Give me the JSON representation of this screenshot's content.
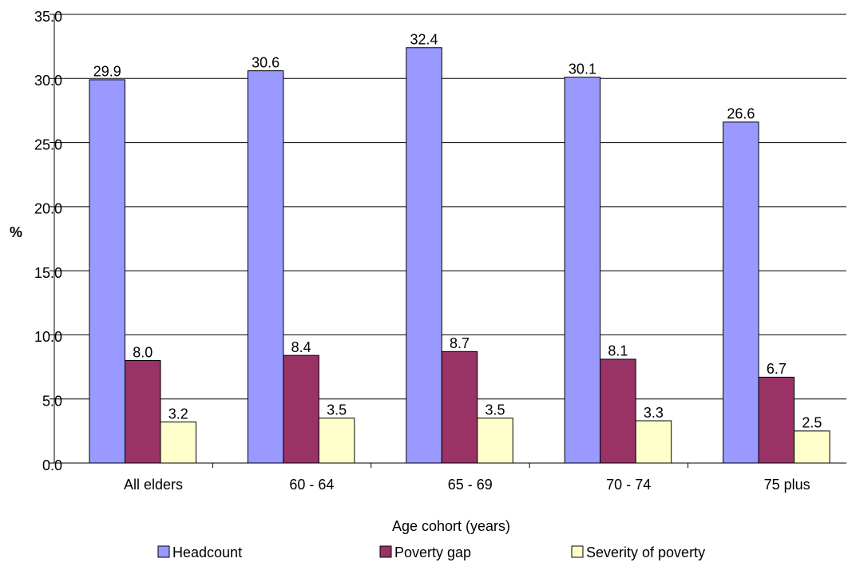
{
  "chart_data": {
    "type": "bar",
    "x_label": "Age cohort (years)",
    "y_label": "%",
    "categories": [
      "All elders",
      "60 - 64",
      "65 - 69",
      "70 - 74",
      "75 plus"
    ],
    "series": [
      {
        "name": "Headcount",
        "color": "#9999ff",
        "values": [
          29.9,
          30.6,
          32.4,
          30.1,
          26.6
        ]
      },
      {
        "name": "Poverty gap",
        "color": "#993366",
        "values": [
          8.0,
          8.4,
          8.7,
          8.1,
          6.7
        ],
        "value_labels": [
          "8.0",
          "8.4",
          "8.7",
          "8.1",
          "6.7"
        ]
      },
      {
        "name": "Severity of poverty",
        "color": "#ffffcc",
        "values": [
          3.2,
          3.5,
          3.5,
          3.3,
          2.5
        ]
      }
    ],
    "ylim": [
      0,
      35
    ],
    "yticks": [
      {
        "value": 0,
        "label": "0.0"
      },
      {
        "value": 5,
        "label": "5.0"
      },
      {
        "value": 10,
        "label": "10.0"
      },
      {
        "value": 15,
        "label": "15.0"
      },
      {
        "value": 20,
        "label": "20.0"
      },
      {
        "value": 25,
        "label": "25.0"
      },
      {
        "value": 30,
        "label": "30.0"
      },
      {
        "value": 35,
        "label": "35.0"
      }
    ],
    "grid": true,
    "legend": "bottom"
  }
}
